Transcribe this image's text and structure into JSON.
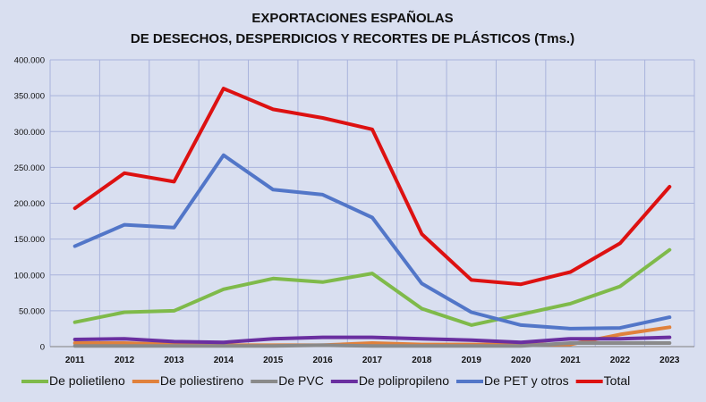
{
  "chart_data": {
    "type": "line",
    "title": "EXPORTACIONES ESPAÑOLAS",
    "subtitle": "DE DESECHOS, DESPERDICIOS Y RECORTES DE PLÁSTICOS (Tms.)",
    "xlabel": "",
    "ylabel": "",
    "x": [
      "2011",
      "2012",
      "2013",
      "2014",
      "2015",
      "2016",
      "2017",
      "2018",
      "2019",
      "2020",
      "2021",
      "2022",
      "2023"
    ],
    "ylim": [
      0,
      400000
    ],
    "yticks": [
      0,
      50000,
      100000,
      150000,
      200000,
      250000,
      300000,
      350000,
      400000
    ],
    "ytick_labels": [
      "0",
      "50.000",
      "100.000",
      "150.000",
      "200.000",
      "250.000",
      "300.000",
      "350.000",
      "400.000"
    ],
    "grid": true,
    "legend_position": "bottom",
    "series": [
      {
        "name": "De polietileno",
        "color": "#7fba4a",
        "values": [
          34000,
          48000,
          50000,
          80000,
          95000,
          90000,
          102000,
          53000,
          30000,
          45000,
          60000,
          84000,
          135000
        ]
      },
      {
        "name": "De poliestireno",
        "color": "#e0813c",
        "values": [
          5000,
          5000,
          3000,
          2000,
          2000,
          2000,
          5000,
          3000,
          3000,
          3000,
          3000,
          17000,
          27000
        ]
      },
      {
        "name": "De PVC",
        "color": "#8a8a8a",
        "values": [
          1000,
          1000,
          1000,
          1000,
          1000,
          2000,
          1000,
          1000,
          1000,
          1000,
          5000,
          5000,
          5000
        ]
      },
      {
        "name": "De polipropileno",
        "color": "#6a2fa0",
        "values": [
          10000,
          11000,
          7000,
          6000,
          11000,
          13000,
          13000,
          11000,
          9000,
          6000,
          11000,
          11000,
          13000
        ]
      },
      {
        "name": "De PET y otros",
        "color": "#5276c8",
        "values": [
          140000,
          170000,
          166000,
          267000,
          219000,
          212000,
          180000,
          88000,
          48000,
          30000,
          25000,
          26000,
          41000
        ]
      },
      {
        "name": "Total",
        "color": "#dd1111",
        "values": [
          193000,
          242000,
          230000,
          360000,
          331000,
          319000,
          303000,
          157000,
          93000,
          87000,
          104000,
          144000,
          223000
        ]
      }
    ]
  }
}
